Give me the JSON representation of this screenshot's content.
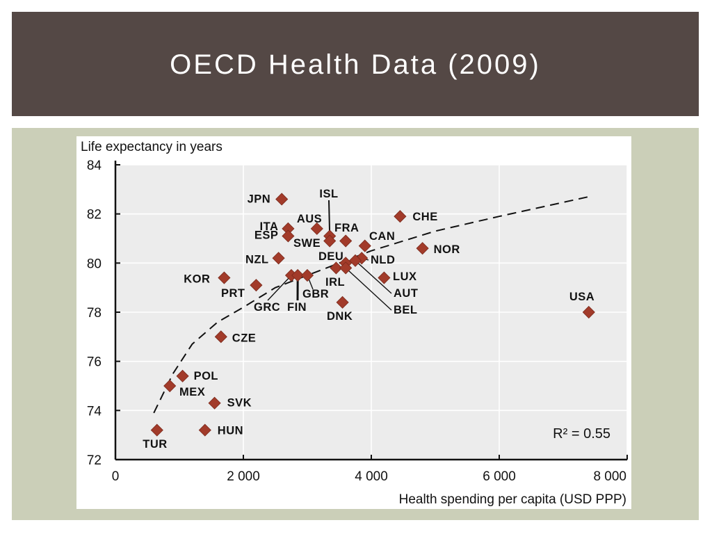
{
  "slide": {
    "title": "OECD Health Data (2009)"
  },
  "colors": {
    "title_bar": "#544845",
    "title_text": "#ffffff",
    "content_bg": "#cbcfb8",
    "plot_bg": "#ececec",
    "marker": "#a23b2a",
    "text": "#111111"
  },
  "chart_data": {
    "type": "scatter",
    "ylabel": "Life expectancy in years",
    "xlabel": "Health spending per capita (USD PPP)",
    "xlim": [
      0,
      8000
    ],
    "ylim": [
      72,
      84
    ],
    "x_ticks": [
      0,
      2000,
      4000,
      6000,
      8000
    ],
    "x_tick_labels": [
      "0",
      "2 000",
      "4 000",
      "6 000",
      "8 000"
    ],
    "y_ticks": [
      72,
      74,
      76,
      78,
      80,
      82,
      84
    ],
    "y_tick_labels": [
      "72",
      "74",
      "76",
      "78",
      "80",
      "82",
      "84"
    ],
    "grid": true,
    "annotation": "R² = 0.55",
    "trendline": {
      "style": "dashed",
      "model": "logarithmic",
      "points": [
        [
          600,
          73.9
        ],
        [
          900,
          75.5
        ],
        [
          1200,
          76.7
        ],
        [
          1600,
          77.6
        ],
        [
          2000,
          78.2
        ],
        [
          2500,
          79.0
        ],
        [
          3000,
          79.5
        ],
        [
          3500,
          80.0
        ],
        [
          4000,
          80.5
        ],
        [
          5000,
          81.3
        ],
        [
          6000,
          81.9
        ],
        [
          7400,
          82.7
        ]
      ]
    },
    "points": [
      {
        "label": "JPN",
        "x": 2600,
        "y": 82.6
      },
      {
        "label": "ISL",
        "x": 3350,
        "y": 81.1
      },
      {
        "label": "AUS",
        "x": 3150,
        "y": 81.4
      },
      {
        "label": "ITA",
        "x": 2700,
        "y": 81.4
      },
      {
        "label": "ESP",
        "x": 2700,
        "y": 81.1
      },
      {
        "label": "SWE",
        "x": 3350,
        "y": 80.9
      },
      {
        "label": "FRA",
        "x": 3600,
        "y": 80.9
      },
      {
        "label": "CHE",
        "x": 4450,
        "y": 81.9
      },
      {
        "label": "CAN",
        "x": 3900,
        "y": 80.7
      },
      {
        "label": "NOR",
        "x": 4800,
        "y": 80.6
      },
      {
        "label": "NZL",
        "x": 2550,
        "y": 80.2
      },
      {
        "label": "DEU",
        "x": 3600,
        "y": 80.0
      },
      {
        "label": "NLD",
        "x": 3850,
        "y": 80.2
      },
      {
        "label": "KOR",
        "x": 1700,
        "y": 79.4
      },
      {
        "label": "PRT",
        "x": 2200,
        "y": 79.1
      },
      {
        "label": "GRC",
        "x": 2750,
        "y": 79.5
      },
      {
        "label": "FIN",
        "x": 2850,
        "y": 79.5
      },
      {
        "label": "GBR",
        "x": 3000,
        "y": 79.5
      },
      {
        "label": "IRL",
        "x": 3450,
        "y": 79.8
      },
      {
        "label": "LUX",
        "x": 4200,
        "y": 79.4
      },
      {
        "label": "AUT",
        "x": 3750,
        "y": 80.1
      },
      {
        "label": "BEL",
        "x": 3600,
        "y": 79.8
      },
      {
        "label": "DNK",
        "x": 3550,
        "y": 78.4
      },
      {
        "label": "USA",
        "x": 7400,
        "y": 78.0
      },
      {
        "label": "CZE",
        "x": 1650,
        "y": 77.0
      },
      {
        "label": "POL",
        "x": 1050,
        "y": 75.4
      },
      {
        "label": "MEX",
        "x": 850,
        "y": 75.0
      },
      {
        "label": "SVK",
        "x": 1550,
        "y": 74.3
      },
      {
        "label": "TUR",
        "x": 650,
        "y": 73.2
      },
      {
        "label": "HUN",
        "x": 1400,
        "y": 73.2
      }
    ]
  }
}
